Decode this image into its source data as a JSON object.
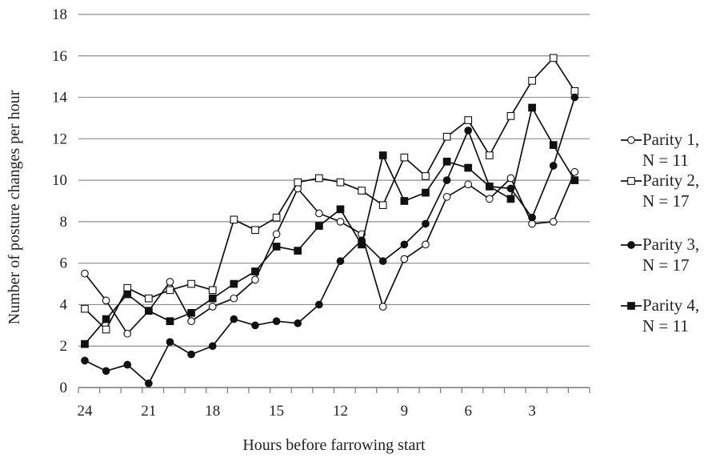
{
  "chart_data": {
    "type": "line",
    "title": "",
    "xlabel": "Hours before farrowing start",
    "ylabel": "Number of posture changes per hour",
    "ylim": [
      0,
      18
    ],
    "y_ticks": [
      0,
      2,
      4,
      6,
      8,
      10,
      12,
      14,
      16,
      18
    ],
    "x_ticks": [
      24,
      21,
      18,
      15,
      12,
      9,
      6,
      3
    ],
    "x_axis_reversed": true,
    "xlim": [
      0.3,
      24.3
    ],
    "grid": "horizontal",
    "legend_position": "right",
    "x": [
      24,
      23,
      22,
      21,
      20,
      19,
      18,
      17,
      16,
      15,
      14,
      13,
      12,
      11,
      10,
      9,
      8,
      7,
      6,
      5,
      4,
      3,
      2,
      1
    ],
    "series": [
      {
        "legend_line1": "Parity 1,",
        "legend_line2": "N = 11",
        "marker": "circle-open",
        "values": [
          5.5,
          4.2,
          2.6,
          3.7,
          5.1,
          3.2,
          3.9,
          4.3,
          5.2,
          7.4,
          9.6,
          8.4,
          8.0,
          7.4,
          3.9,
          6.2,
          6.9,
          9.2,
          9.8,
          9.1,
          10.1,
          7.9,
          8.0,
          10.4
        ]
      },
      {
        "legend_line1": "Parity 2,",
        "legend_line2": "N = 17",
        "marker": "square-open",
        "values": [
          3.8,
          2.8,
          4.8,
          4.3,
          4.7,
          5.0,
          4.7,
          8.1,
          7.6,
          8.2,
          9.9,
          10.1,
          9.9,
          9.5,
          8.8,
          11.1,
          10.2,
          12.1,
          12.9,
          11.2,
          13.1,
          14.8,
          15.9,
          14.3
        ]
      },
      {
        "legend_line1": "Parity 3,",
        "legend_line2": "N = 17",
        "marker": "circle-filled",
        "values": [
          1.3,
          0.8,
          1.1,
          0.2,
          2.2,
          1.6,
          2.0,
          3.3,
          3.0,
          3.2,
          3.1,
          4.0,
          6.1,
          7.1,
          6.1,
          6.9,
          7.9,
          10.0,
          12.4,
          9.7,
          9.6,
          8.2,
          10.7,
          14.0
        ]
      },
      {
        "legend_line1": "Parity 4,",
        "legend_line2": "N = 11",
        "marker": "square-filled",
        "values": [
          2.1,
          3.3,
          4.5,
          3.7,
          3.2,
          3.6,
          4.3,
          5.0,
          5.6,
          6.8,
          6.6,
          7.8,
          8.6,
          6.9,
          11.2,
          9.0,
          9.4,
          10.9,
          10.6,
          9.7,
          9.1,
          13.5,
          11.7,
          10.0
        ]
      }
    ]
  }
}
